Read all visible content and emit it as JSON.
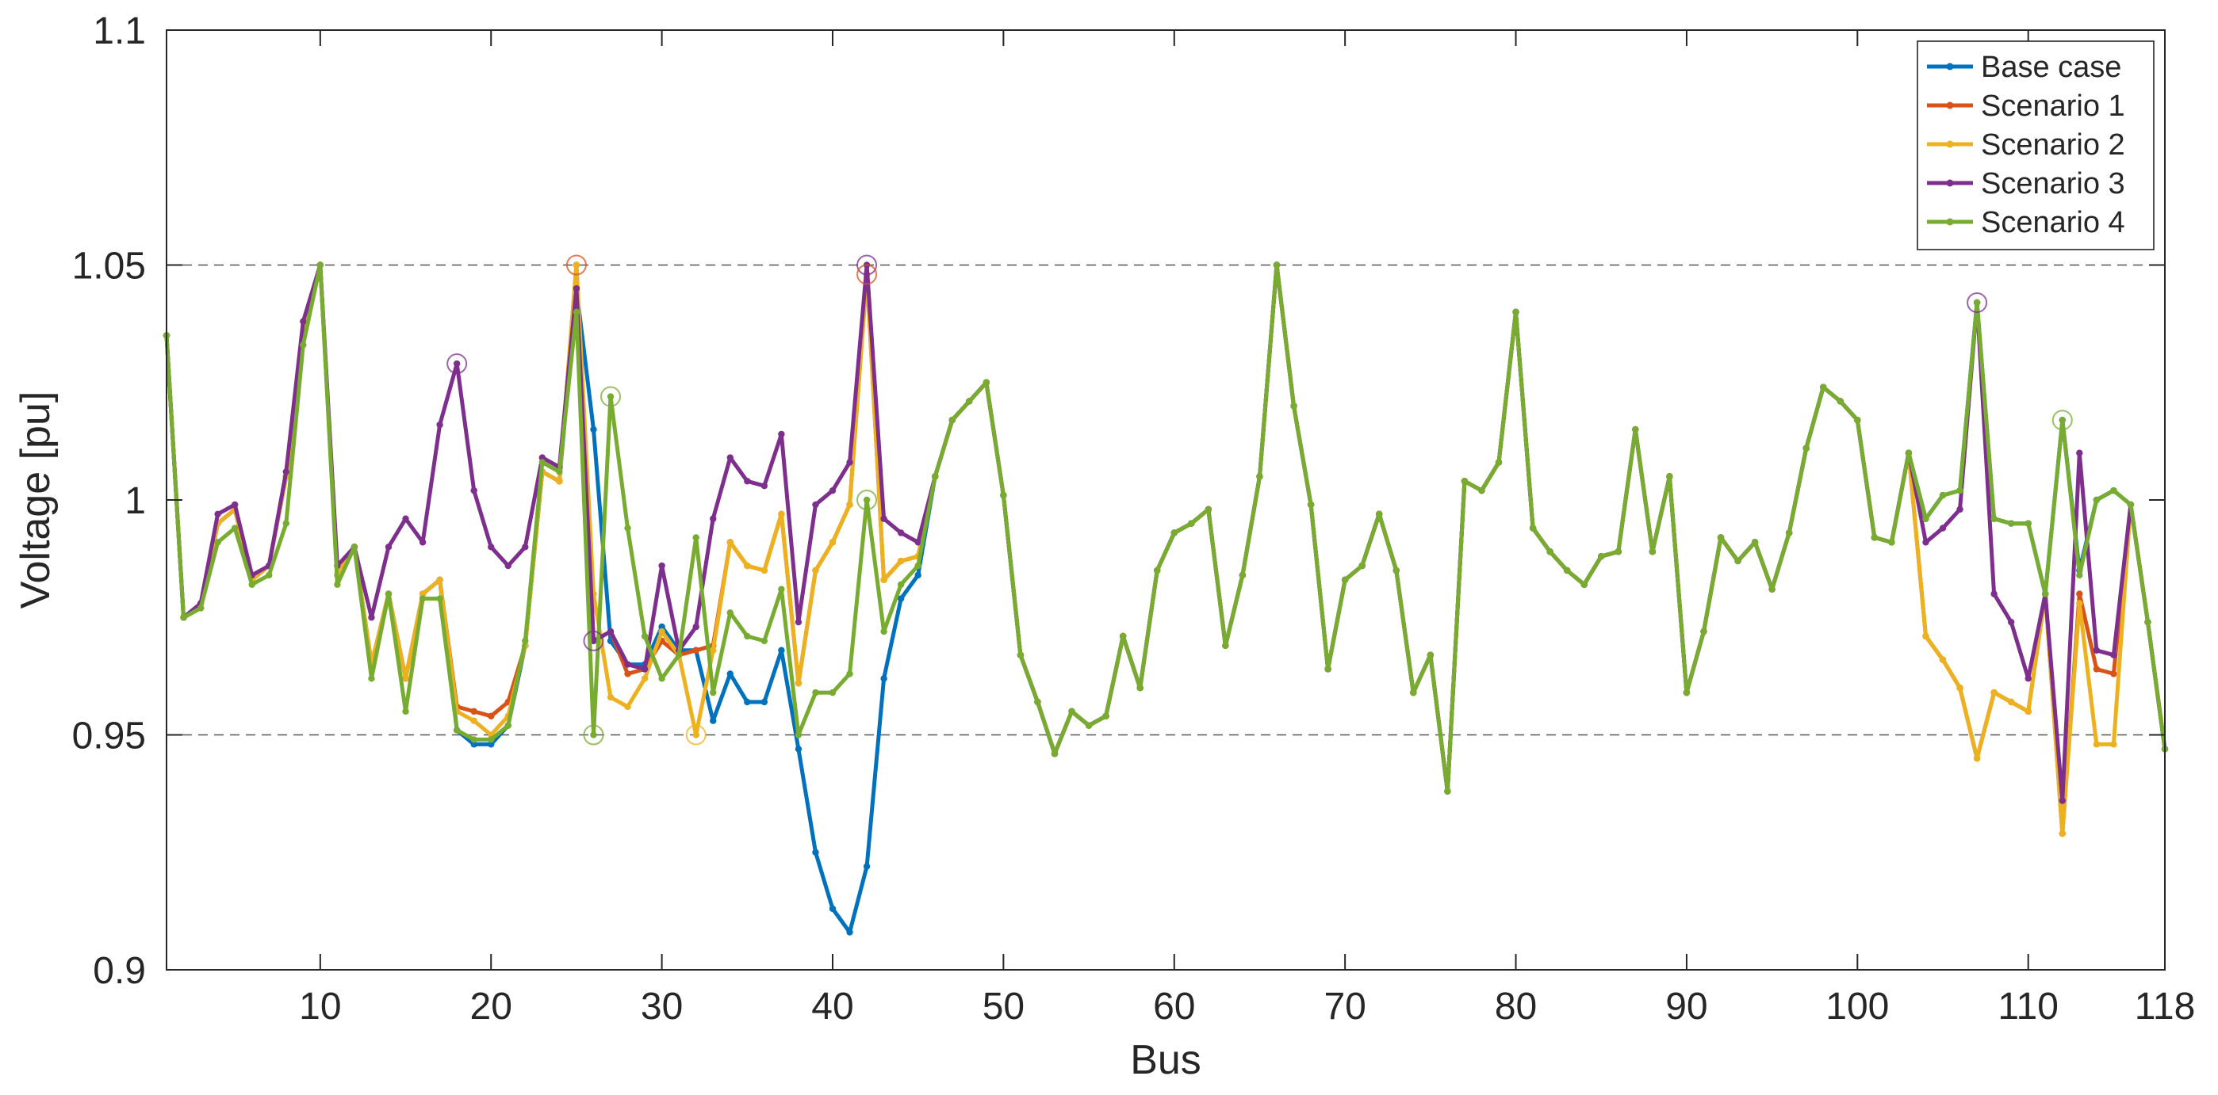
{
  "chart_data": {
    "type": "line",
    "title": "",
    "xlabel": "Bus",
    "ylabel": "Voltage [pu]",
    "xlim": [
      1,
      118
    ],
    "ylim": [
      0.9,
      1.1
    ],
    "xticks": [
      10,
      20,
      30,
      40,
      50,
      60,
      70,
      80,
      90,
      100,
      110,
      118
    ],
    "yticks": [
      0.9,
      0.95,
      1,
      1.05,
      1.1
    ],
    "ytick_labels": [
      "0.9",
      "0.95",
      "1",
      "1.05",
      "1.1"
    ],
    "reference_lines": [
      0.95,
      1.05
    ],
    "grid": false,
    "legend_position": "top-right",
    "base": [
      1.035,
      0.975,
      0.977,
      0.995,
      0.998,
      0.983,
      0.986,
      1.005,
      1.035,
      1.05,
      0.984,
      0.99,
      0.965,
      0.98,
      0.962,
      0.98,
      0.983,
      0.951,
      0.948,
      0.948,
      0.952,
      0.969,
      1.006,
      1.004,
      1.045,
      1.015,
      0.97,
      0.965,
      0.965,
      0.973,
      0.968,
      0.968,
      0.953,
      0.963,
      0.957,
      0.957,
      0.968,
      0.947,
      0.925,
      0.913,
      0.908,
      0.922,
      0.962,
      0.979,
      0.984,
      1.005,
      1.017,
      1.021,
      1.025,
      1.001,
      0.967,
      0.957,
      0.946,
      0.955,
      0.952,
      0.954,
      0.971,
      0.96,
      0.985,
      0.993,
      0.995,
      0.998,
      0.969,
      0.984,
      1.005,
      1.05,
      1.02,
      0.999,
      0.964,
      0.983,
      0.986,
      0.997,
      0.985,
      0.959,
      0.967,
      0.938,
      1.004,
      1.002,
      1.008,
      1.04,
      0.994,
      0.989,
      0.985,
      0.982,
      0.988,
      0.989,
      1.015,
      0.989,
      1.005,
      0.959,
      0.972,
      0.992,
      0.987,
      0.991,
      0.981,
      0.993,
      1.011,
      1.024,
      1.021,
      1.017,
      0.992,
      0.991,
      1.01,
      0.996,
      1.001,
      1.002,
      1.042,
      0.996,
      0.995,
      0.995,
      0.98,
      1.017,
      0.985,
      1.0,
      1.002,
      0.999,
      0.974,
      0.947
    ],
    "series": [
      {
        "name": "Base case",
        "color": "#0072bd",
        "overrides": {}
      },
      {
        "name": "Scenario 1",
        "color": "#d95319",
        "overrides": {
          "18": 0.956,
          "19": 0.955,
          "20": 0.954,
          "21": 0.957,
          "25": 1.05,
          "26": 0.97,
          "27": 0.972,
          "28": 0.963,
          "29": 0.964,
          "30": 0.97,
          "31": 0.967,
          "32": 0.968,
          "33": 0.969,
          "34": 0.991,
          "35": 0.986,
          "36": 0.985,
          "37": 0.997,
          "38": 0.961,
          "39": 0.985,
          "40": 0.991,
          "41": 0.999,
          "42": 1.048,
          "43": 0.983,
          "44": 0.987,
          "45": 0.988,
          "103": 1.01,
          "104": 0.971,
          "105": 0.966,
          "106": 0.96,
          "107": 0.945,
          "108": 0.959,
          "109": 0.957,
          "110": 0.955,
          "111": 0.98,
          "112": 0.929,
          "113": 0.98,
          "114": 0.964,
          "115": 0.963
        }
      },
      {
        "name": "Scenario 2",
        "color": "#edb120",
        "overrides": {
          "18": 0.955,
          "19": 0.953,
          "20": 0.95,
          "21": 0.954,
          "25": 1.05,
          "26": 0.98,
          "27": 0.958,
          "28": 0.956,
          "29": 0.962,
          "30": 0.972,
          "31": 0.967,
          "32": 0.95,
          "33": 0.968,
          "34": 0.991,
          "35": 0.986,
          "36": 0.985,
          "37": 0.997,
          "38": 0.961,
          "39": 0.985,
          "40": 0.991,
          "41": 0.999,
          "42": 1.048,
          "43": 0.983,
          "44": 0.987,
          "45": 0.988,
          "103": 1.01,
          "104": 0.971,
          "105": 0.966,
          "106": 0.96,
          "107": 0.945,
          "108": 0.959,
          "109": 0.957,
          "110": 0.955,
          "111": 0.98,
          "112": 0.929,
          "113": 0.978,
          "114": 0.948,
          "115": 0.948
        }
      },
      {
        "name": "Scenario 3",
        "color": "#7e2f8e",
        "overrides": {
          "1": 1.035,
          "2": 0.975,
          "3": 0.978,
          "4": 0.997,
          "5": 0.999,
          "6": 0.984,
          "7": 0.986,
          "8": 1.006,
          "9": 1.038,
          "10": 1.05,
          "11": 0.986,
          "12": 0.99,
          "13": 0.975,
          "14": 0.99,
          "15": 0.996,
          "16": 0.991,
          "17": 1.016,
          "18": 1.029,
          "19": 1.002,
          "20": 0.99,
          "21": 0.986,
          "22": 0.99,
          "23": 1.009,
          "24": 1.007,
          "25": 1.045,
          "26": 0.97,
          "27": 0.972,
          "28": 0.965,
          "29": 0.964,
          "30": 0.986,
          "31": 0.968,
          "32": 0.973,
          "33": 0.996,
          "34": 1.009,
          "35": 1.004,
          "36": 1.003,
          "37": 1.014,
          "38": 0.974,
          "39": 0.999,
          "40": 1.002,
          "41": 1.008,
          "42": 1.05,
          "43": 0.996,
          "44": 0.993,
          "45": 0.991,
          "103": 1.01,
          "104": 0.991,
          "105": 0.994,
          "106": 0.998,
          "107": 1.042,
          "108": 0.98,
          "109": 0.974,
          "110": 0.962,
          "111": 0.98,
          "112": 0.936,
          "113": 1.01,
          "114": 0.968,
          "115": 0.967
        }
      },
      {
        "name": "Scenario 4",
        "color": "#77ac30",
        "overrides": {
          "4": 0.991,
          "5": 0.994,
          "6": 0.982,
          "7": 0.984,
          "8": 0.995,
          "9": 1.033,
          "11": 0.982,
          "13": 0.962,
          "15": 0.955,
          "16": 0.979,
          "17": 0.979,
          "18": 0.951,
          "19": 0.949,
          "20": 0.949,
          "21": 0.952,
          "22": 0.97,
          "23": 1.008,
          "24": 1.006,
          "25": 1.04,
          "26": 0.95,
          "27": 1.022,
          "28": 0.994,
          "29": 0.971,
          "30": 0.962,
          "31": 0.967,
          "32": 0.992,
          "33": 0.959,
          "34": 0.976,
          "35": 0.971,
          "36": 0.97,
          "37": 0.981,
          "38": 0.95,
          "39": 0.959,
          "40": 0.959,
          "41": 0.963,
          "42": 1.0,
          "43": 0.972,
          "44": 0.982,
          "45": 0.986,
          "112": 1.017,
          "113": 0.984
        }
      }
    ],
    "highlight_markers": [
      {
        "series": "Scenario 3",
        "x": 18,
        "y": 1.029
      },
      {
        "series": "Scenario 1",
        "x": 25,
        "y": 1.05
      },
      {
        "series": "Scenario 3",
        "x": 26,
        "y": 0.97
      },
      {
        "series": "Scenario 4",
        "x": 26,
        "y": 0.95
      },
      {
        "series": "Scenario 4",
        "x": 27,
        "y": 1.022
      },
      {
        "series": "Scenario 2",
        "x": 32,
        "y": 0.95
      },
      {
        "series": "Scenario 3",
        "x": 42,
        "y": 1.05
      },
      {
        "series": "Scenario 1",
        "x": 42,
        "y": 1.048
      },
      {
        "series": "Scenario 4",
        "x": 42,
        "y": 1.0
      },
      {
        "series": "Scenario 3",
        "x": 107,
        "y": 1.042
      },
      {
        "series": "Scenario 4",
        "x": 112,
        "y": 1.017
      }
    ]
  }
}
